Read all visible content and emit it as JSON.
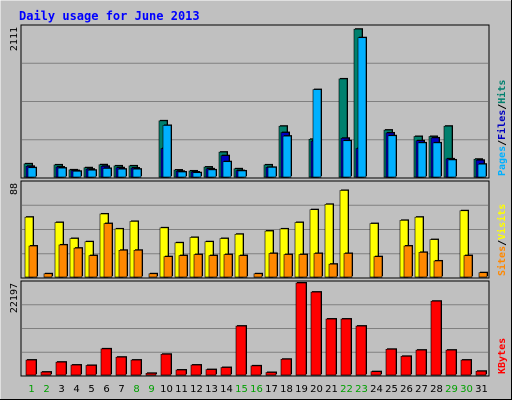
{
  "chart_data": {
    "type": "bar",
    "title": "Daily usage for June 2013",
    "days": [
      "1",
      "2",
      "3",
      "4",
      "5",
      "6",
      "7",
      "8",
      "9",
      "10",
      "11",
      "12",
      "13",
      "14",
      "15",
      "16",
      "17",
      "18",
      "19",
      "20",
      "21",
      "22",
      "23",
      "24",
      "25",
      "26",
      "27",
      "28",
      "29",
      "30",
      "31"
    ],
    "weekend_days": [
      1,
      2,
      8,
      9,
      15,
      16,
      22,
      23,
      29,
      30
    ],
    "panels": [
      {
        "id": "hits-files-pages",
        "ymax_label": "2111",
        "ymax": 2111,
        "right_labels": [
          {
            "text": "Pages",
            "color": "#00b0ff"
          },
          {
            "text": "/",
            "color": "#000000"
          },
          {
            "text": "Files",
            "color": "#0000c0"
          },
          {
            "text": "/",
            "color": "#000000"
          },
          {
            "text": "Hits",
            "color": "#00806e"
          }
        ],
        "series": [
          {
            "name": "Hits",
            "color": "#00806e",
            "values": [
              185,
              0,
              170,
              100,
              130,
              172,
              156,
              156,
              0,
              790,
              98,
              85,
              140,
              350,
              115,
              0,
              170,
              715,
              0,
              530,
              0,
              1380,
              2080,
              0,
              660,
              0,
              570,
              570,
              715,
              0,
              250
            ]
          },
          {
            "name": "Files",
            "color": "#0000c0",
            "values": [
              150,
              0,
              140,
              90,
              110,
              150,
              130,
              126,
              0,
              400,
              80,
              70,
              115,
              300,
              90,
              0,
              135,
              625,
              0,
              505,
              0,
              545,
              400,
              0,
              620,
              0,
              510,
              550,
              255,
              0,
              235
            ]
          },
          {
            "name": "Pages",
            "color": "#00b0ff",
            "values": [
              130,
              0,
              125,
              80,
              95,
              120,
              110,
              110,
              0,
              725,
              70,
              60,
              100,
              215,
              85,
              0,
              135,
              575,
              0,
              1230,
              0,
              510,
              1960,
              0,
              580,
              0,
              480,
              480,
              240,
              0,
              180
            ]
          }
        ]
      },
      {
        "id": "visits-sites",
        "ymax_label": "88",
        "ymax": 88,
        "right_labels": [
          {
            "text": "Sites",
            "color": "#ff8800"
          },
          {
            "text": "/",
            "color": "#000000"
          },
          {
            "text": "Visits",
            "color": "#ffff00"
          }
        ],
        "series": [
          {
            "name": "Visits",
            "color": "#ffff00",
            "values": [
              56,
              0,
              51,
              36,
              33,
              59,
              45,
              52,
              0,
              46,
              32,
              37,
              33,
              36,
              40,
              0,
              43,
              45,
              51,
              63,
              68,
              81,
              0,
              50,
              0,
              53,
              56,
              35,
              0,
              62,
              0
            ]
          },
          {
            "name": "Sites",
            "color": "#ff8800",
            "values": [
              29,
              3,
              30,
              27,
              20,
              50,
              25,
              25,
              3,
              19,
              20,
              21,
              20,
              21,
              20,
              3,
              22,
              21,
              21,
              22,
              12,
              22,
              0,
              19,
              0,
              29,
              23,
              15,
              0,
              20,
              4
            ]
          }
        ]
      },
      {
        "id": "kbytes",
        "ymax_label": "22197",
        "ymax": 22197,
        "right_labels": [
          {
            "text": "KBytes",
            "color": "#ff0000"
          }
        ],
        "series": [
          {
            "name": "KBytes",
            "color": "#ff0000",
            "values": [
              3600,
              700,
              3100,
              2400,
              2300,
              6300,
              4300,
              3600,
              400,
              5000,
              1200,
              2400,
              1300,
              1800,
              11800,
              2200,
              600,
              3800,
              22197,
              20000,
              13500,
              13500,
              11800,
              800,
              6200,
              4500,
              6000,
              17800,
              6000,
              3600,
              900
            ]
          }
        ]
      }
    ]
  }
}
